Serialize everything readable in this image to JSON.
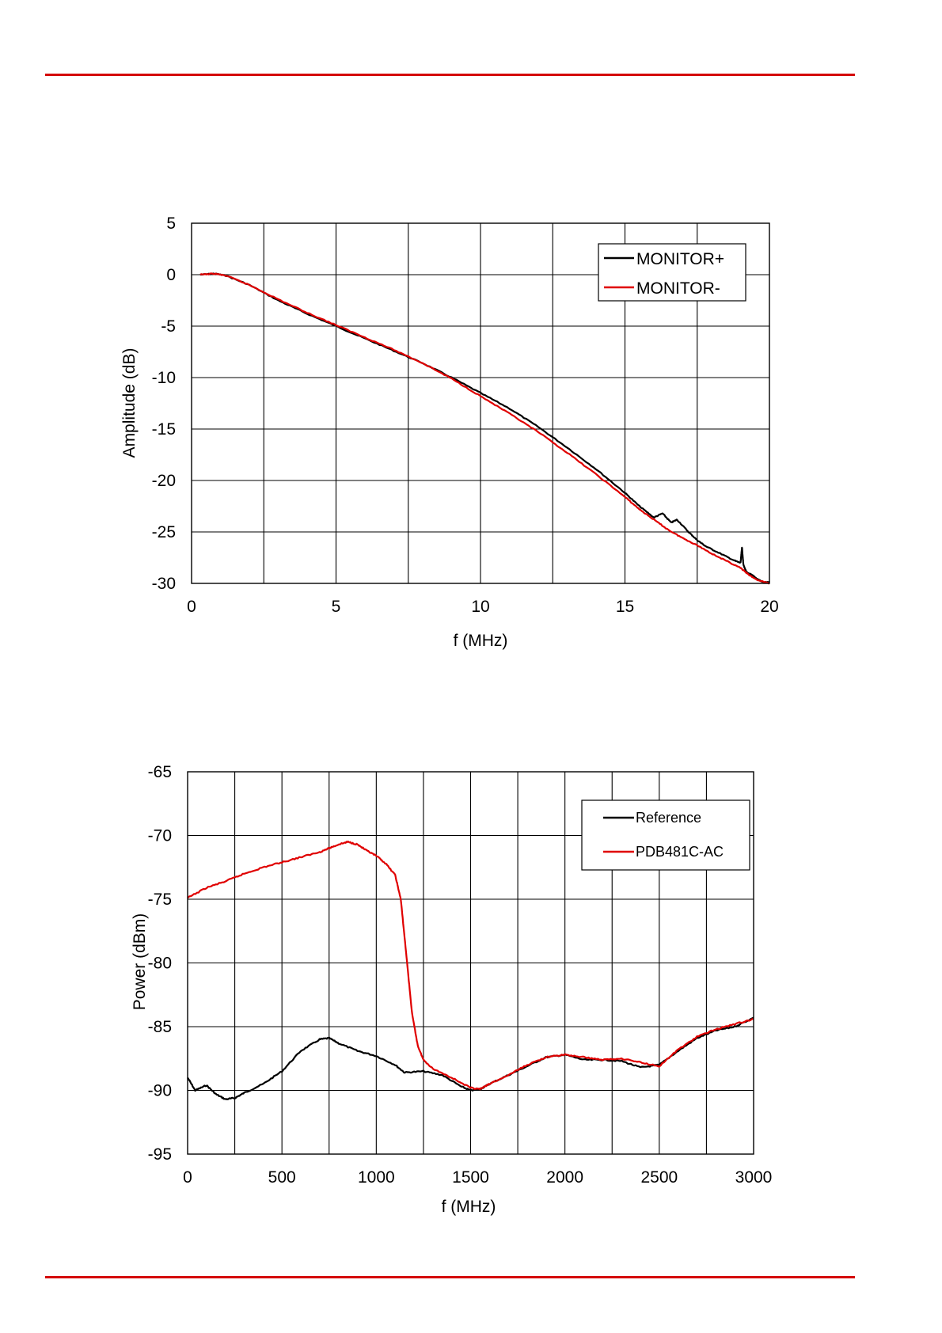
{
  "decorations": {
    "rule_color": "#d40000"
  },
  "chart_data": [
    {
      "type": "line",
      "xlabel": "f (MHz)",
      "ylabel": "Amplitude (dB)",
      "xlim": [
        0,
        20
      ],
      "ylim": [
        -30,
        5
      ],
      "xticks": [
        0,
        5,
        10,
        15,
        20
      ],
      "yticks": [
        5,
        0,
        -5,
        -10,
        -15,
        -20,
        -25,
        -30
      ],
      "grid": true,
      "legend_position": "top-right",
      "series": [
        {
          "name": "MONITOR+",
          "color": "#000000",
          "x": [
            0.3,
            0.8,
            1.2,
            2,
            3,
            4,
            5,
            6,
            7,
            8,
            9,
            10,
            11,
            12,
            13,
            14,
            15,
            15.5,
            16,
            16.3,
            16.6,
            16.8,
            17.2,
            17.5,
            17.8,
            18.3,
            18.8,
            19.0,
            19.05,
            19.1,
            19.2,
            19.4,
            19.6,
            19.8,
            20.0
          ],
          "y": [
            0,
            0.1,
            -0.1,
            -1.0,
            -2.5,
            -3.8,
            -5.0,
            -6.2,
            -7.4,
            -8.6,
            -10.0,
            -11.5,
            -13.0,
            -14.8,
            -16.8,
            -18.9,
            -21.2,
            -22.5,
            -23.6,
            -23.2,
            -24.1,
            -23.8,
            -25.0,
            -25.8,
            -26.4,
            -27.1,
            -27.8,
            -28.0,
            -26.5,
            -28.2,
            -28.9,
            -29.2,
            -29.6,
            -29.9,
            -29.9
          ]
        },
        {
          "name": "MONITOR-",
          "color": "#e00000",
          "x": [
            0.3,
            0.8,
            1.2,
            2,
            3,
            4,
            5,
            6,
            7,
            8,
            9,
            10,
            11,
            12,
            13,
            14,
            15,
            15.5,
            16,
            16.5,
            17,
            17.5,
            18,
            18.5,
            19,
            19.3,
            19.6,
            20.0
          ],
          "y": [
            0,
            0.1,
            -0.1,
            -1.0,
            -2.4,
            -3.7,
            -4.9,
            -6.1,
            -7.3,
            -8.6,
            -10.1,
            -11.8,
            -13.5,
            -15.3,
            -17.3,
            -19.4,
            -21.6,
            -22.8,
            -23.8,
            -24.8,
            -25.6,
            -26.3,
            -27.1,
            -27.8,
            -28.5,
            -29.2,
            -29.7,
            -30.0
          ]
        }
      ]
    },
    {
      "type": "line",
      "xlabel": "f (MHz)",
      "ylabel": "Power (dBm)",
      "xlim": [
        0,
        3000
      ],
      "ylim": [
        -95,
        -65
      ],
      "xticks": [
        0,
        500,
        1000,
        1500,
        2000,
        2500,
        3000
      ],
      "yticks": [
        -65,
        -70,
        -75,
        -80,
        -85,
        -90,
        -95
      ],
      "grid": true,
      "legend_position": "top-right",
      "series": [
        {
          "name": "Reference",
          "color": "#000000",
          "x": [
            0,
            40,
            100,
            150,
            200,
            250,
            300,
            400,
            500,
            600,
            700,
            750,
            800,
            900,
            1000,
            1100,
            1150,
            1250,
            1350,
            1450,
            1500,
            1550,
            1600,
            1700,
            1800,
            1900,
            2000,
            2100,
            2200,
            2300,
            2400,
            2500,
            2600,
            2700,
            2800,
            2900,
            3000
          ],
          "y": [
            -89.0,
            -90.0,
            -89.6,
            -90.3,
            -90.7,
            -90.6,
            -90.2,
            -89.5,
            -88.5,
            -86.9,
            -86.0,
            -85.9,
            -86.3,
            -86.9,
            -87.3,
            -88.0,
            -88.6,
            -88.5,
            -88.8,
            -89.7,
            -90.0,
            -89.9,
            -89.5,
            -88.8,
            -88.1,
            -87.4,
            -87.2,
            -87.6,
            -87.6,
            -87.7,
            -88.2,
            -88.0,
            -86.9,
            -85.9,
            -85.3,
            -85.0,
            -84.3
          ]
        },
        {
          "name": "PDB481C-AC",
          "color": "#e00000",
          "x": [
            0,
            100,
            200,
            300,
            400,
            500,
            600,
            700,
            750,
            800,
            850,
            900,
            950,
            1000,
            1050,
            1100,
            1130,
            1160,
            1190,
            1220,
            1250,
            1300,
            1400,
            1500,
            1550,
            1600,
            1700,
            1800,
            1900,
            2000,
            2100,
            2200,
            2300,
            2400,
            2500,
            2600,
            2700,
            2800,
            2900,
            3000
          ],
          "y": [
            -74.9,
            -74.1,
            -73.6,
            -73.0,
            -72.5,
            -72.1,
            -71.7,
            -71.3,
            -71.0,
            -70.7,
            -70.5,
            -70.7,
            -71.2,
            -71.6,
            -72.2,
            -73.1,
            -75.0,
            -79.5,
            -84.0,
            -86.5,
            -87.6,
            -88.3,
            -89.0,
            -89.8,
            -89.9,
            -89.5,
            -88.8,
            -88.0,
            -87.4,
            -87.2,
            -87.4,
            -87.6,
            -87.5,
            -87.8,
            -88.1,
            -86.8,
            -85.8,
            -85.2,
            -84.8,
            -84.4
          ]
        }
      ]
    }
  ]
}
